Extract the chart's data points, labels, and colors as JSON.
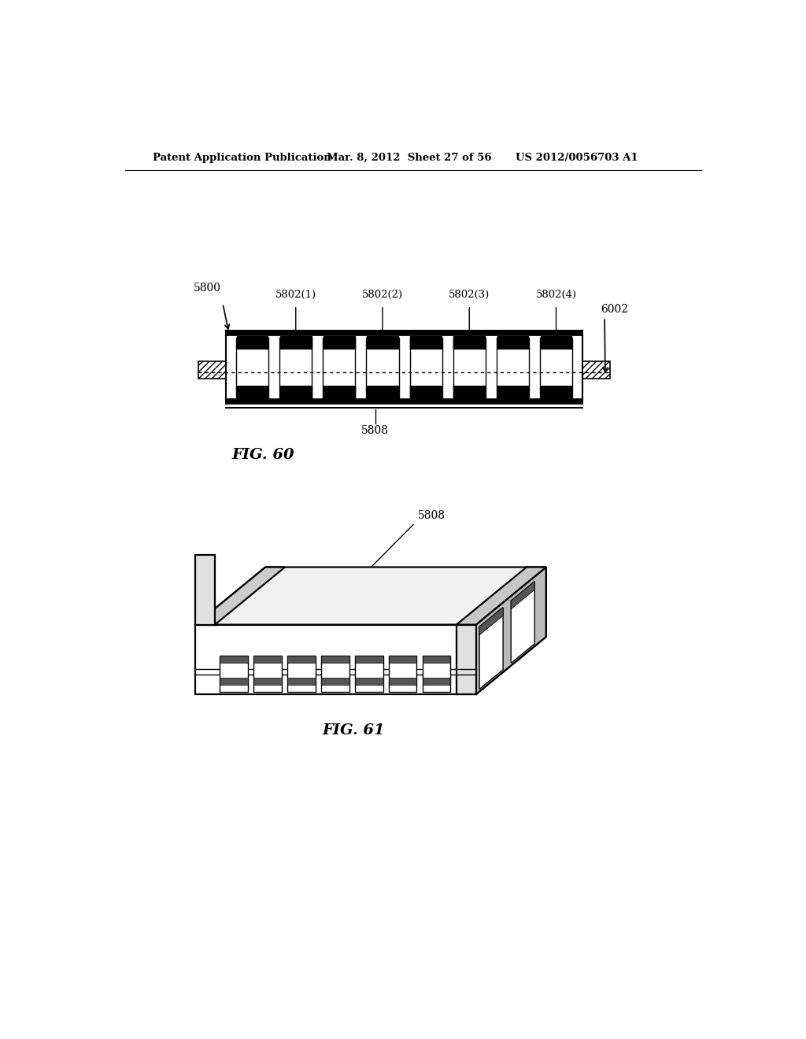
{
  "bg_color": "#ffffff",
  "header_left": "Patent Application Publication",
  "header_mid": "Mar. 8, 2012  Sheet 27 of 56",
  "header_right": "US 2012/0056703 A1",
  "fig60_label": "FIG. 60",
  "fig61_label": "FIG. 61",
  "label_5800": "5800",
  "label_6002": "6002",
  "label_5808": "5808",
  "label_5808b": "5808",
  "label_5802_1": "5802(1)",
  "label_5802_2": "5802(2)",
  "label_5802_3": "5802(3)",
  "label_5802_4": "5802(4)"
}
